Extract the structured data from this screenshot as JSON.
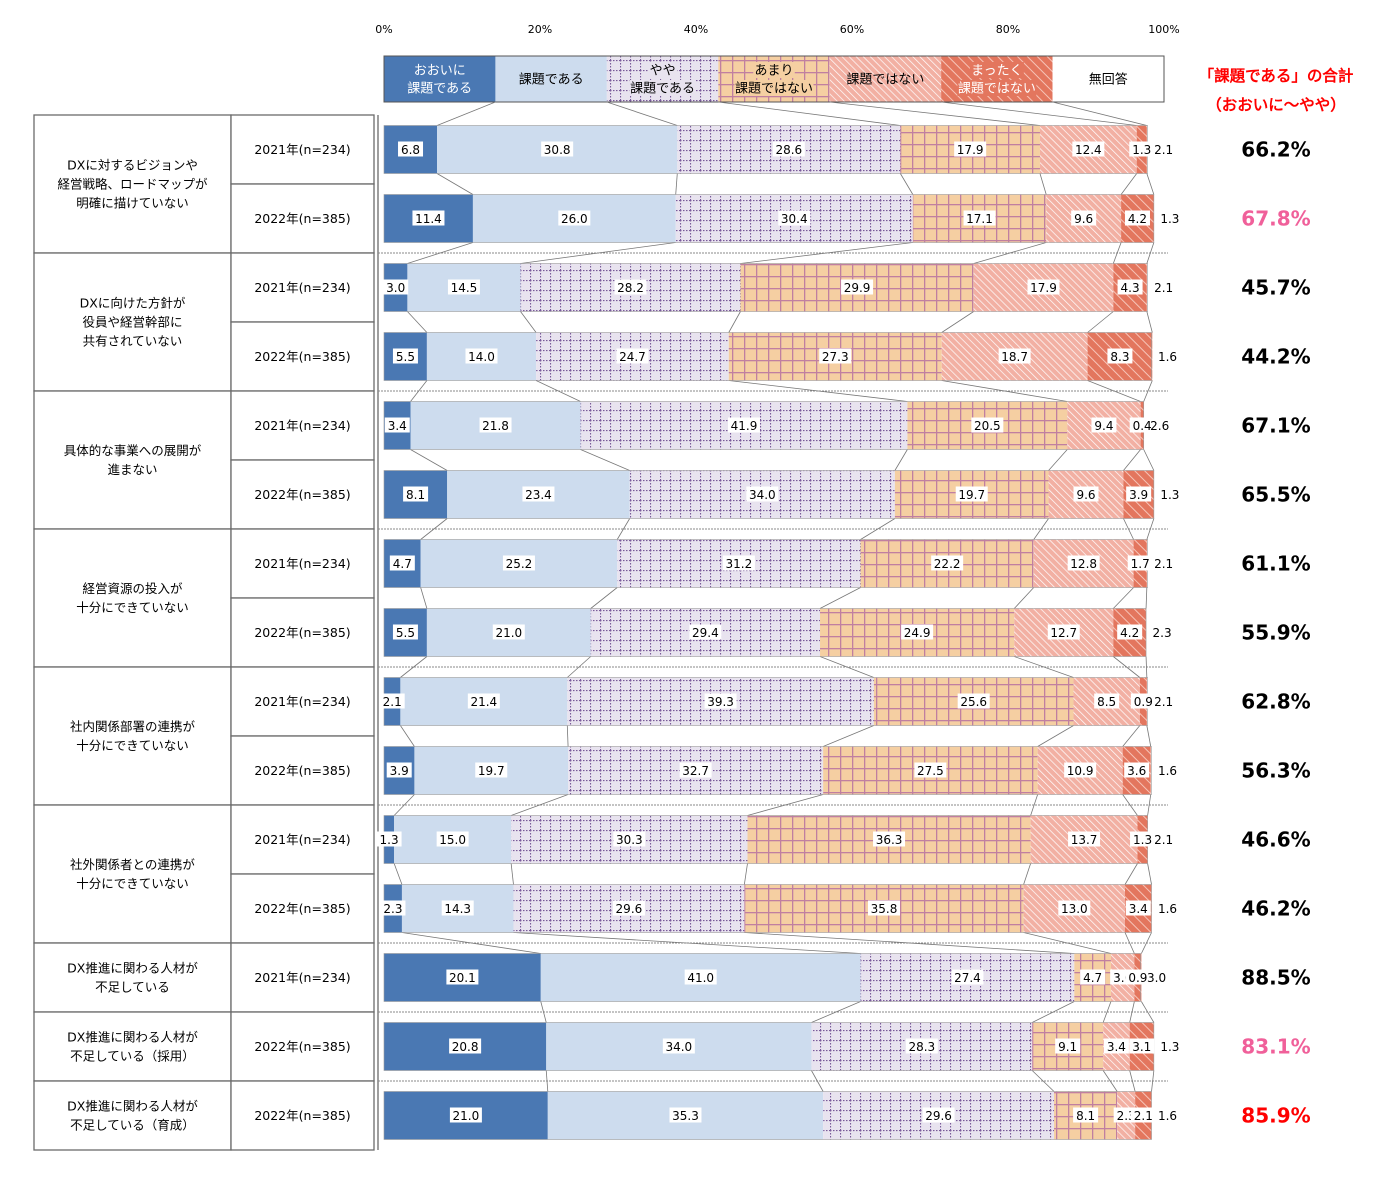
{
  "chart_data": {
    "type": "stacked-bar-horizontal",
    "axis": {
      "ticks": [
        "0%",
        "20%",
        "40%",
        "60%",
        "80%",
        "100%"
      ],
      "range": [
        0,
        100
      ]
    },
    "legend": [
      "おおいに\n課題である",
      "課題である",
      "やや\n課題である",
      "あまり\n課題ではない",
      "課題ではない",
      "まったく\n課題ではない",
      "無回答"
    ],
    "total_header": [
      "「課題である」の合計",
      "（おおいに～やや）"
    ],
    "colors": {
      "okoi": "#4a78b3",
      "kadai": "#cddcee",
      "yaya_bg": "#e8e3ef",
      "yaya_dot": "#7a5a9a",
      "amari_bg": "#f5cfa2",
      "amari_line": "#c07fa0",
      "dewanai": "#f2b0a3",
      "mattaku": "#e3765e",
      "mukaito": "#ffffff",
      "header_red": "#ff0000",
      "pink": "#f0609a",
      "red": "#ff0000"
    },
    "groups": [
      {
        "label": "DXに対するビジョンや\n経営戦略、ロードマップが\n明確に描けていない",
        "rows": [
          {
            "year": "2021年(n=234)",
            "values": [
              6.8,
              30.8,
              28.6,
              17.9,
              12.4,
              1.3,
              2.1
            ],
            "total": "66.2%",
            "total_color": "black"
          },
          {
            "year": "2022年(n=385)",
            "values": [
              11.4,
              26.0,
              30.4,
              17.1,
              9.6,
              4.2,
              1.3
            ],
            "total": "67.8%",
            "total_color": "pink"
          }
        ]
      },
      {
        "label": "DXに向けた方針が\n役員や経営幹部に\n共有されていない",
        "rows": [
          {
            "year": "2021年(n=234)",
            "values": [
              3.0,
              14.5,
              28.2,
              29.9,
              17.9,
              4.3,
              2.1
            ],
            "total": "45.7%",
            "total_color": "black"
          },
          {
            "year": "2022年(n=385)",
            "values": [
              5.5,
              14.0,
              24.7,
              27.3,
              18.7,
              8.3,
              1.6
            ],
            "total": "44.2%",
            "total_color": "black"
          }
        ]
      },
      {
        "label": "具体的な事業への展開が\n進まない",
        "rows": [
          {
            "year": "2021年(n=234)",
            "values": [
              3.4,
              21.8,
              41.9,
              20.5,
              9.4,
              0.4,
              2.6
            ],
            "total": "67.1%",
            "total_color": "black"
          },
          {
            "year": "2022年(n=385)",
            "values": [
              8.1,
              23.4,
              34.0,
              19.7,
              9.6,
              3.9,
              1.3
            ],
            "total": "65.5%",
            "total_color": "black"
          }
        ]
      },
      {
        "label": "経営資源の投入が\n十分にできていない",
        "rows": [
          {
            "year": "2021年(n=234)",
            "values": [
              4.7,
              25.2,
              31.2,
              22.2,
              12.8,
              1.7,
              2.1
            ],
            "total": "61.1%",
            "total_color": "black"
          },
          {
            "year": "2022年(n=385)",
            "values": [
              5.5,
              21.0,
              29.4,
              24.9,
              12.7,
              4.2,
              2.3
            ],
            "total": "55.9%",
            "total_color": "black"
          }
        ]
      },
      {
        "label": "社内関係部署の連携が\n十分にできていない",
        "rows": [
          {
            "year": "2021年(n=234)",
            "values": [
              2.1,
              21.4,
              39.3,
              25.6,
              8.5,
              0.9,
              2.1
            ],
            "total": "62.8%",
            "total_color": "black"
          },
          {
            "year": "2022年(n=385)",
            "values": [
              3.9,
              19.7,
              32.7,
              27.5,
              10.9,
              3.6,
              1.6
            ],
            "total": "56.3%",
            "total_color": "black"
          }
        ]
      },
      {
        "label": "社外関係者との連携が\n十分にできていない",
        "rows": [
          {
            "year": "2021年(n=234)",
            "values": [
              1.3,
              15.0,
              30.3,
              36.3,
              13.7,
              1.3,
              2.1
            ],
            "total": "46.6%",
            "total_color": "black"
          },
          {
            "year": "2022年(n=385)",
            "values": [
              2.3,
              14.3,
              29.6,
              35.8,
              13.0,
              3.4,
              1.6
            ],
            "total": "46.2%",
            "total_color": "black"
          }
        ]
      },
      {
        "label": "DX推進に関わる人材が\n不足している",
        "rows": [
          {
            "year": "2021年(n=234)",
            "values": [
              20.1,
              41.0,
              27.4,
              4.7,
              3.0,
              0.9,
              3.0
            ],
            "total": "88.5%",
            "total_color": "black"
          }
        ]
      },
      {
        "label": "DX推進に関わる人材が\n不足している（採用）",
        "rows": [
          {
            "year": "2022年(n=385)",
            "values": [
              20.8,
              34.0,
              28.3,
              9.1,
              3.4,
              3.1,
              1.3
            ],
            "total": "83.1%",
            "total_color": "pink"
          }
        ]
      },
      {
        "label": "DX推進に関わる人材が\n不足している（育成）",
        "rows": [
          {
            "year": "2022年(n=385)",
            "values": [
              21.0,
              35.3,
              29.6,
              8.1,
              2.3,
              2.1,
              1.6
            ],
            "total": "85.9%",
            "total_color": "red"
          }
        ]
      }
    ]
  }
}
